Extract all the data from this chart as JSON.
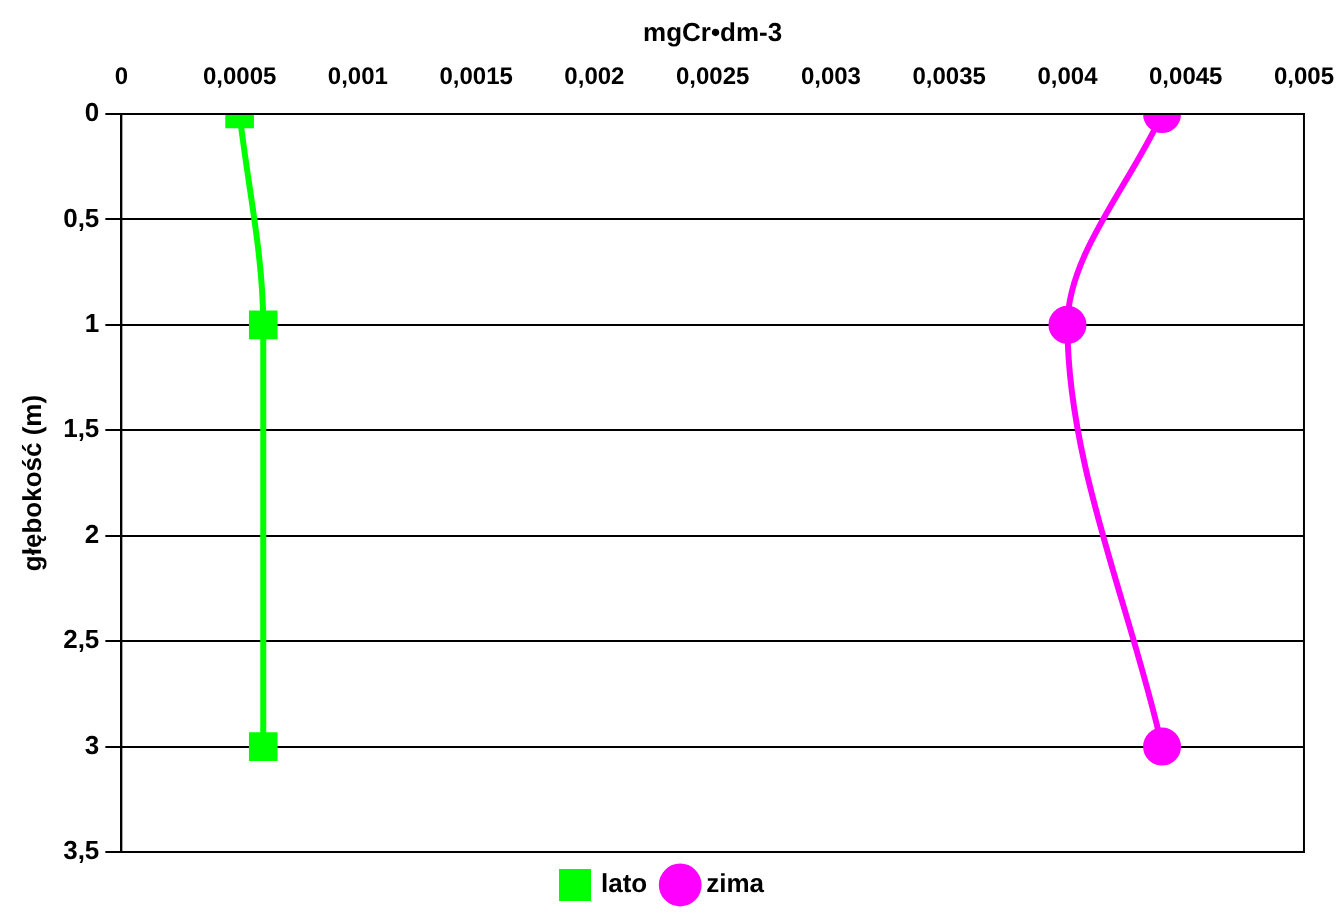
{
  "chart_data": {
    "type": "line",
    "orientation": "horizontal",
    "xlabel": "mgCr•dm-3",
    "ylabel": "głębokość (m)",
    "x": [
      0,
      1,
      3
    ],
    "series": [
      {
        "name": "lato",
        "color": "#00ff00",
        "marker": "square",
        "values": [
          0.0005,
          0.0006,
          0.0006
        ]
      },
      {
        "name": "zima",
        "color": "#ff00ff",
        "marker": "circle",
        "values": [
          0.0044,
          0.004,
          0.0044
        ]
      }
    ],
    "xlim": [
      0,
      0.005
    ],
    "xticks": [
      0,
      {
        "value": 0.0005,
        "label": "0,0005"
      },
      {
        "value": 0.001,
        "label": "0,001"
      },
      {
        "value": 0.0015,
        "label": "0,0015"
      },
      {
        "value": 0.002,
        "label": "0,002"
      },
      {
        "value": 0.0025,
        "label": "0,0025"
      },
      {
        "value": 0.003,
        "label": "0,003"
      },
      {
        "value": 0.0035,
        "label": "0,0035"
      },
      {
        "value": 0.004,
        "label": "0,004"
      },
      {
        "value": 0.0045,
        "label": "0,0045"
      },
      {
        "value": 0.005,
        "label": "0,005"
      }
    ],
    "ylim": [
      3.5,
      0
    ],
    "yticks": [
      0,
      {
        "value": 0.5,
        "label": "0,5"
      },
      1,
      {
        "value": 1.5,
        "label": "1,5"
      },
      2,
      {
        "value": 2.5,
        "label": "2,5"
      },
      3,
      {
        "value": 3.5,
        "label": "3,5"
      }
    ],
    "grid": "y",
    "legend": "bottom",
    "line_style": "solid"
  }
}
